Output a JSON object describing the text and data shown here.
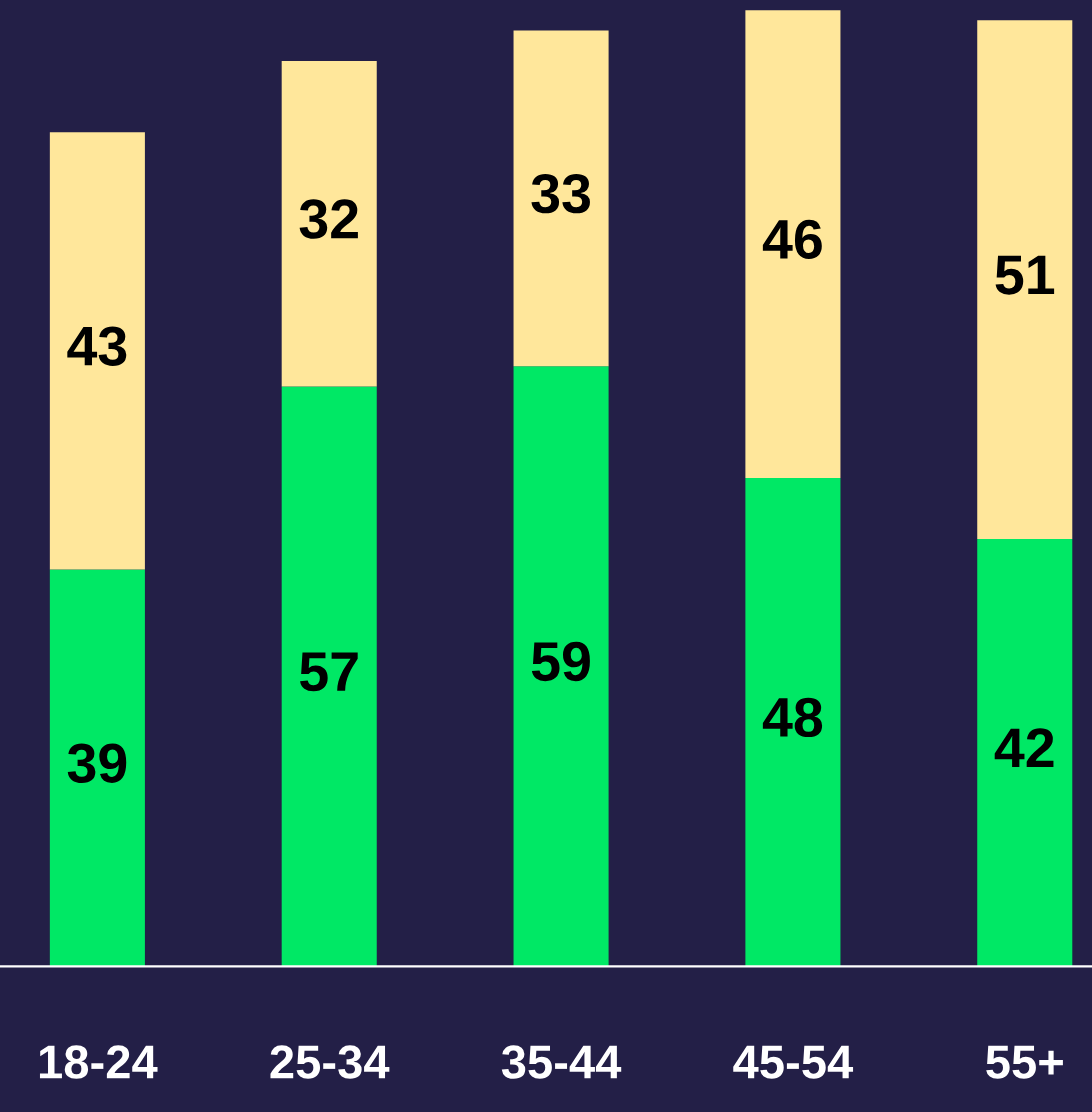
{
  "chart_data": {
    "type": "bar",
    "stacked": true,
    "categories": [
      "18-24",
      "25-34",
      "35-44",
      "45-54",
      "55+"
    ],
    "series": [
      {
        "color": "#00e865",
        "values": [
          39,
          57,
          59,
          48,
          42
        ]
      },
      {
        "color": "#ffe79b",
        "values": [
          43,
          32,
          33,
          46,
          51
        ]
      }
    ],
    "ylim": [
      0,
      95
    ],
    "data_labels": true,
    "grid": false,
    "legend": false,
    "tick_labels": "x"
  }
}
